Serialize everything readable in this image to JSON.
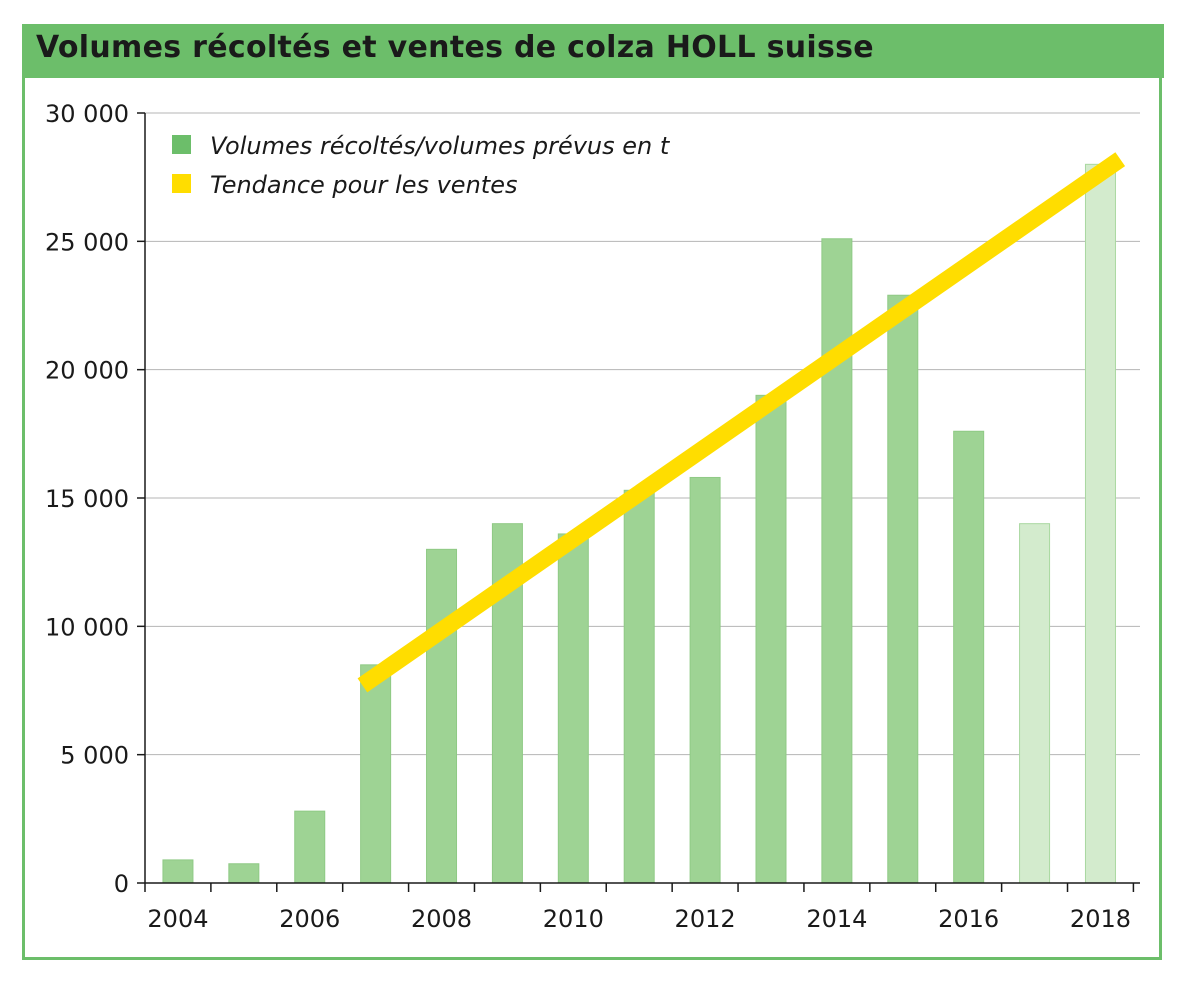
{
  "chart_data": {
    "type": "bar",
    "title": "Volumes récoltés et ventes de colza HOLL suisse",
    "x": [
      2004,
      2005,
      2006,
      2007,
      2008,
      2009,
      2010,
      2011,
      2012,
      2013,
      2014,
      2015,
      2016,
      2017,
      2018
    ],
    "x_tick_labels": [
      "2004",
      "2006",
      "2008",
      "2010",
      "2012",
      "2014",
      "2016",
      "2018"
    ],
    "y_tick_labels": [
      "0",
      "5 000",
      "10 000",
      "15 000",
      "20 000",
      "25 000",
      "30 000"
    ],
    "ylim": [
      0,
      30000
    ],
    "grid": true,
    "legend_position": "top-left",
    "series": [
      {
        "name": "Volumes récoltés/volumes prévus en t",
        "kind": "bar",
        "values": [
          900,
          750,
          2800,
          8500,
          13000,
          14000,
          13600,
          15300,
          15800,
          19000,
          25100,
          22900,
          17600,
          14000,
          28000
        ],
        "forecast": [
          false,
          false,
          false,
          false,
          false,
          false,
          false,
          false,
          false,
          false,
          false,
          false,
          false,
          true,
          true
        ]
      },
      {
        "name": "Tendance pour les ventes",
        "kind": "line",
        "x": [
          2006.8,
          2018.3
        ],
        "y": [
          7700,
          28200
        ]
      }
    ],
    "colors": {
      "bar": "#9ed394",
      "bar_forecast": "#d3ebcd",
      "trend": "#ffdd00",
      "legend_bar": "#6cbe6a",
      "frame": "#6cbe6a",
      "grid": "#b5b5b5"
    }
  }
}
